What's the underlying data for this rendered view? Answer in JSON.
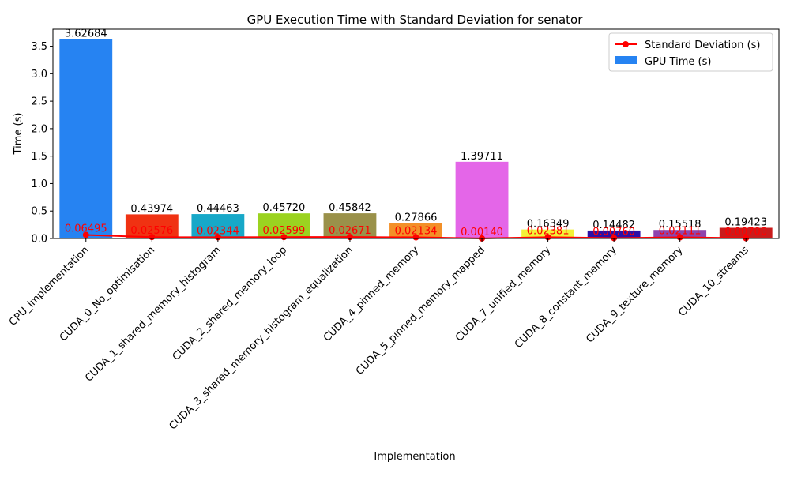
{
  "chart_data": {
    "type": "bar",
    "title": "GPU Execution Time with Standard Deviation for senator",
    "xlabel": "Implementation",
    "ylabel": "Time (s)",
    "ylim": [
      0,
      3.81
    ],
    "yticks": [
      "0.0",
      "0.5",
      "1.0",
      "1.5",
      "2.0",
      "2.5",
      "3.0",
      "3.5"
    ],
    "grid": false,
    "legend_position": "top-right",
    "categories": [
      "CPU_implementation",
      "CUDA_0_No_optimisation",
      "CUDA_1_shared_memory_histogram",
      "CUDA_2_shared_memory_loop",
      "CUDA_3_shared_memory_histogram_equalization",
      "CUDA_4_pinned_memory",
      "CUDA_5_pinned_memory_mapped",
      "CUDA_7_unified_memory",
      "CUDA_8_constant_memory",
      "CUDA_9_texture_memory",
      "CUDA_10_streams"
    ],
    "series": [
      {
        "name": "GPU Time (s)",
        "kind": "bar",
        "values": [
          3.62684,
          0.43974,
          0.44463,
          0.4572,
          0.45842,
          0.27866,
          1.39711,
          0.16349,
          0.14482,
          0.15518,
          0.19423
        ],
        "labels": [
          "3.62684",
          "0.43974",
          "0.44463",
          "0.45720",
          "0.45842",
          "0.27866",
          "1.39711",
          "0.16349",
          "0.14482",
          "0.15518",
          "0.19423"
        ],
        "colors": [
          "#2683f2",
          "#f03212",
          "#17a8c8",
          "#9bd320",
          "#9a914a",
          "#f39028",
          "#e466e8",
          "#f3f236",
          "#2c0fa6",
          "#8e44ad",
          "#c91b1b"
        ]
      },
      {
        "name": "Standard Deviation (s)",
        "kind": "line",
        "color": "#ff0000",
        "values": [
          0.06495,
          0.02576,
          0.02344,
          0.02599,
          0.02671,
          0.02134,
          0.0014,
          0.02381,
          0.0076,
          0.02111,
          0.007
        ],
        "labels": [
          "0.06495",
          "0.02576",
          "0.02344",
          "0.02599",
          "0.02671",
          "0.02134",
          "0.00140",
          "0.02381",
          "0.00760",
          "0.02111",
          "0.00700"
        ]
      }
    ]
  }
}
